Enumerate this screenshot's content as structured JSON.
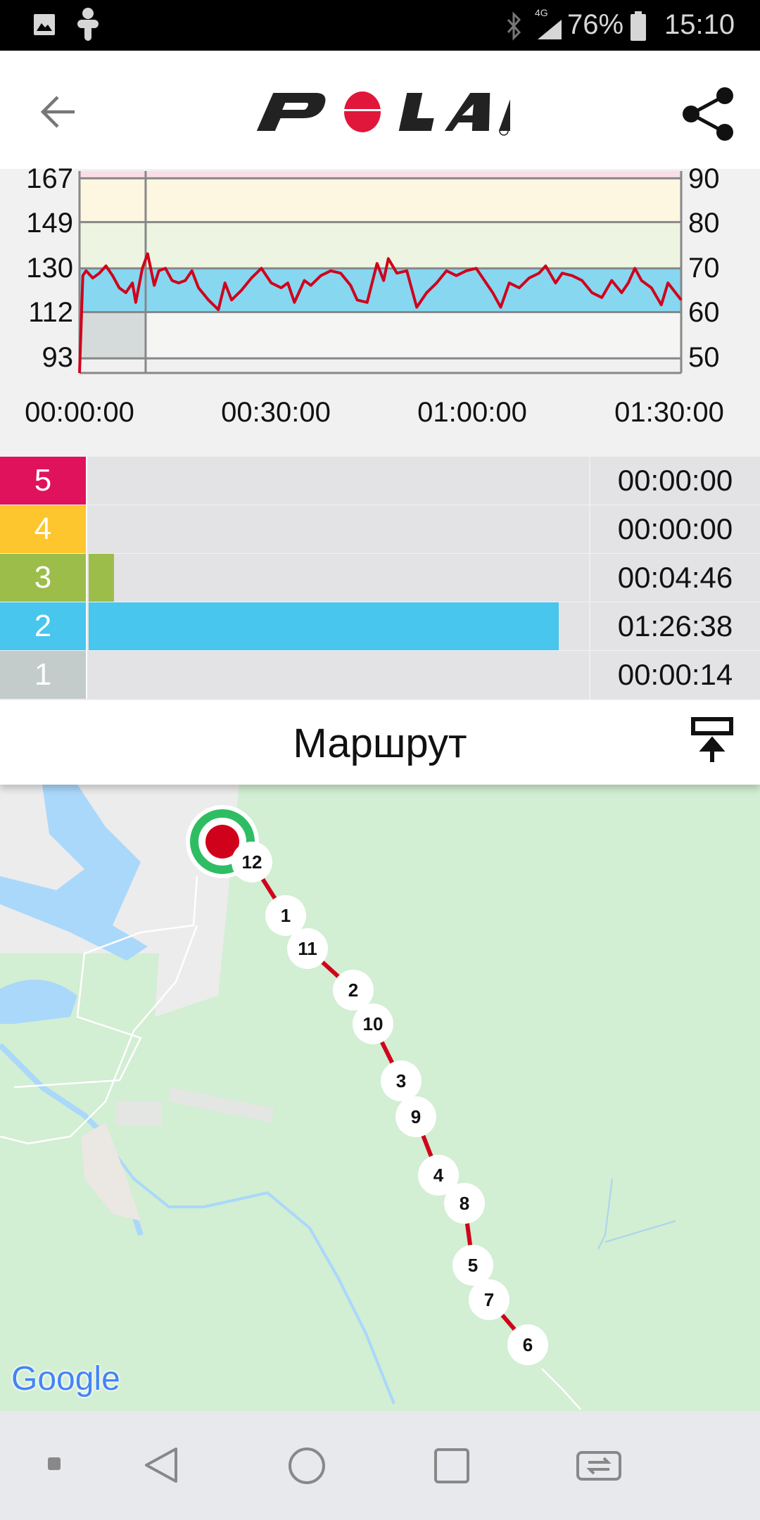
{
  "status_bar": {
    "battery": "76%",
    "time": "15:10",
    "network": "4G",
    "icons": [
      "gallery-icon",
      "accessibility-icon",
      "bluetooth-icon",
      "signal-icon",
      "battery-icon"
    ]
  },
  "header": {
    "logo": "POLAR",
    "back_icon": "arrow-back-icon",
    "share_icon": "share-icon",
    "brand_color": "#e0173b"
  },
  "chart_data": {
    "type": "line",
    "xlabel": "",
    "ylabel": "",
    "x_tick_labels": [
      "00:00:00",
      "00:30:00",
      "01:00:00",
      "01:30:00"
    ],
    "y_left_ticks": [
      "167",
      "149",
      "130",
      "112",
      "93"
    ],
    "y_right_ticks": [
      "90",
      "80",
      "70",
      "60",
      "50"
    ],
    "ylim": [
      87,
      170
    ],
    "xlim_minutes": [
      0,
      91
    ],
    "line_color": "#d0021b",
    "zone_bands": [
      {
        "from": 167,
        "to": 170,
        "color": "#fbdde6"
      },
      {
        "from": 149,
        "to": 167,
        "color": "#fdf6e1"
      },
      {
        "from": 130,
        "to": 149,
        "color": "#eef4e2"
      },
      {
        "from": 112,
        "to": 130,
        "color": "#87d7f1"
      },
      {
        "from": 93,
        "to": 112,
        "color": "#f5f6f4"
      }
    ],
    "series": [
      {
        "x_minutes": [
          0,
          0.5,
          1,
          2,
          3,
          4,
          5,
          6,
          7,
          8,
          8.5,
          9.5,
          10.3,
          11.3,
          12,
          13,
          14,
          15,
          16,
          17,
          18,
          19.5,
          21,
          22,
          23,
          24.5,
          26,
          27.5,
          29,
          30.5,
          31.5,
          32.5,
          34,
          35,
          36.5,
          38,
          39.5,
          41,
          42,
          43.5,
          45,
          46,
          46.7,
          48,
          49.5,
          51,
          52.5,
          54,
          55.5,
          57,
          58.5,
          60,
          61.5,
          62.5,
          63.7,
          65,
          66.5,
          68,
          69.5,
          70.5,
          72,
          73,
          74.5,
          76,
          77.5,
          79,
          80.5,
          82,
          83,
          84,
          85,
          86.5,
          88,
          89,
          91
        ],
        "values": [
          87,
          127,
          129,
          126,
          128,
          131,
          127,
          122,
          120,
          124,
          116,
          130,
          136,
          123,
          129,
          130,
          125,
          124,
          125,
          129,
          122,
          117,
          113,
          124,
          117,
          121,
          126,
          130,
          124,
          122,
          124,
          116,
          125,
          123,
          127,
          129,
          128,
          123,
          117,
          116,
          132,
          125,
          134,
          128,
          129,
          114,
          120,
          124,
          129,
          127,
          129,
          130,
          124,
          120,
          114,
          124,
          122,
          126,
          128,
          131,
          124,
          128,
          127,
          125,
          120,
          118,
          125,
          120,
          124,
          130,
          125,
          122,
          115,
          124,
          117
        ]
      }
    ]
  },
  "zones": [
    {
      "zone": "5",
      "time": "00:00:00",
      "color": "#e0125b",
      "fraction": 0
    },
    {
      "zone": "4",
      "time": "00:00:00",
      "color": "#fdc62e",
      "fraction": 0
    },
    {
      "zone": "3",
      "time": "00:04:46",
      "color": "#9dbd4b",
      "fraction": 0.05
    },
    {
      "zone": "2",
      "time": "01:26:38",
      "color": "#48c6ed",
      "fraction": 0.94
    },
    {
      "zone": "1",
      "time": "00:00:14",
      "color": "#c3cbcb",
      "fraction": 0
    }
  ],
  "route": {
    "title": "Маршрут",
    "expand_icon": "collapse-up-icon",
    "map_attribution": "Google",
    "lap_markers": [
      "12",
      "1",
      "11",
      "2",
      "10",
      "3",
      "9",
      "4",
      "8",
      "5",
      "7",
      "6"
    ]
  },
  "nav_bar": {
    "icons": [
      "recent-dot-icon",
      "nav-back-icon",
      "nav-home-icon",
      "nav-recents-icon",
      "switch-apps-icon"
    ]
  }
}
